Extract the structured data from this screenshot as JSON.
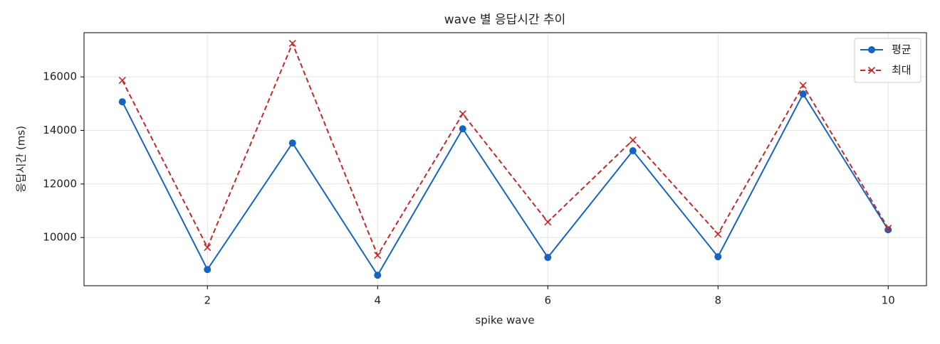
{
  "chart_data": {
    "type": "line",
    "title": "wave 별 응답시간 추이",
    "x_label": "spike wave",
    "y_label": "응답시간 (ms)",
    "x": [
      1,
      2,
      3,
      4,
      5,
      6,
      7,
      8,
      9,
      10
    ],
    "series": [
      {
        "name": "평균",
        "color": "#1565c0",
        "marker": "o",
        "linestyle": "solid",
        "values": [
          15070,
          8805,
          13530,
          8593,
          14060,
          9257,
          13240,
          9283,
          15360,
          10290
        ]
      },
      {
        "name": "최대",
        "color": "#c62828",
        "marker": "x",
        "linestyle": "dashed",
        "values": [
          15870,
          9628,
          17250,
          9336,
          14620,
          10580,
          13640,
          10130,
          15680,
          10345
        ]
      }
    ],
    "xlim": [
      0.55,
      10.45
    ],
    "xticks": [
      2,
      4,
      6,
      8,
      10
    ],
    "ylim": [
      8200,
      17650
    ],
    "yticks": [
      10000,
      12000,
      14000,
      16000
    ],
    "grid": true,
    "legend": "upper right"
  }
}
